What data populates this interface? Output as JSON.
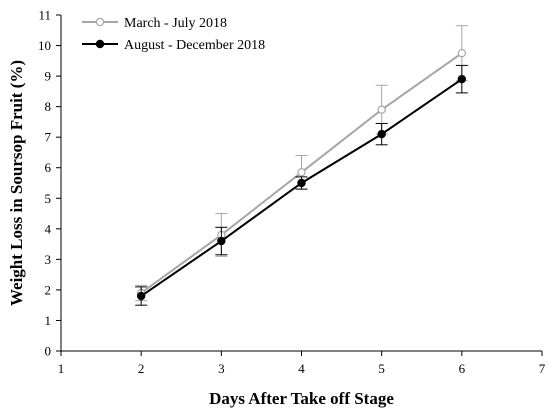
{
  "chart_data": {
    "type": "line",
    "xlabel": "Days After Take off Stage",
    "ylabel": "Weight Loss in Soursop Fruit (%)",
    "xlim": [
      1,
      7
    ],
    "ylim": [
      0,
      11
    ],
    "xticks": [
      "1",
      "2",
      "3",
      "4",
      "5",
      "6",
      "7"
    ],
    "yticks": [
      "0",
      "1",
      "2",
      "3",
      "4",
      "5",
      "6",
      "7",
      "8",
      "9",
      "10",
      "11"
    ],
    "grid": false,
    "legend_position": "top-left",
    "series": [
      {
        "name": "March - July 2018",
        "color": "#a6a6a6",
        "marker": "open-circle",
        "x": [
          2,
          3,
          4,
          5,
          6
        ],
        "y": [
          1.9,
          3.8,
          5.85,
          7.9,
          9.75
        ],
        "error": [
          0.25,
          0.7,
          0.55,
          0.8,
          0.9
        ]
      },
      {
        "name": "August - December 2018",
        "color": "#000000",
        "marker": "filled-circle",
        "x": [
          2,
          3,
          4,
          5,
          6
        ],
        "y": [
          1.8,
          3.6,
          5.5,
          7.1,
          8.9
        ],
        "error": [
          0.3,
          0.45,
          0.2,
          0.35,
          0.45
        ]
      }
    ]
  }
}
